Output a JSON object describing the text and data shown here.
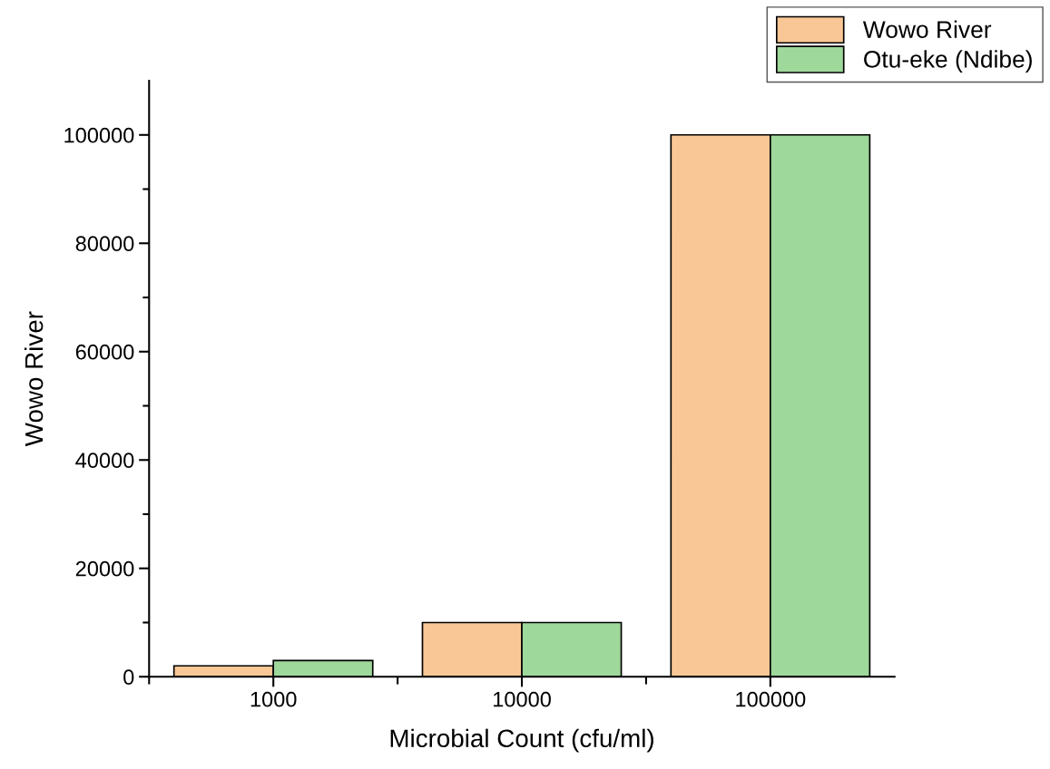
{
  "chart_data": {
    "type": "bar",
    "xlabel": "Microbial Count (cfu/ml)",
    "ylabel": "Wowo River",
    "categories": [
      "1000",
      "10000",
      "100000"
    ],
    "series": [
      {
        "name": "Wowo River",
        "color": "#f9c795",
        "values": [
          2000,
          10000,
          100000
        ]
      },
      {
        "name": "Otu-eke (Ndibe)",
        "color": "#9fd89b",
        "values": [
          3000,
          10000,
          100000
        ]
      }
    ],
    "ylim": [
      0,
      110000
    ],
    "yticks": [
      0,
      20000,
      40000,
      60000,
      80000,
      100000
    ],
    "grid": false,
    "legend": "top right"
  }
}
